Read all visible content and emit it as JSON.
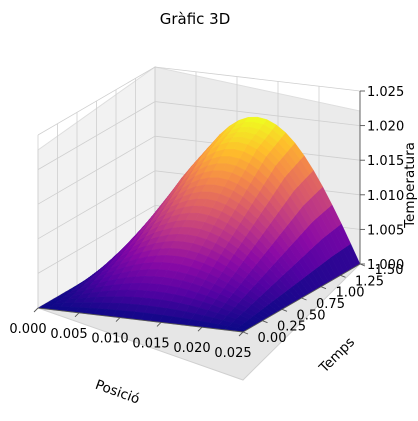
{
  "chart_data": {
    "type": "surface",
    "title": "Gràfic 3D",
    "xlabel": "Posició",
    "ylabel": "Temps",
    "zlabel": "Temperatura",
    "colormap": "plasma",
    "grid": true,
    "xlim": [
      0.0,
      0.025
    ],
    "ylim": [
      0.0,
      1.5
    ],
    "zlim": [
      1.0,
      1.025
    ],
    "x_ticks": [
      "0.000",
      "0.005",
      "0.010",
      "0.015",
      "0.020",
      "0.025"
    ],
    "y_ticks": [
      "0.00",
      "0.25",
      "0.50",
      "0.75",
      "1.00",
      "1.25",
      "1.50"
    ],
    "z_ticks": [
      "1.000",
      "1.005",
      "1.010",
      "1.015",
      "1.020",
      "1.025"
    ],
    "surface": {
      "description_of_values": "T(x,t) = 1 + A(t)*sin(pi*x/0.025), A rising with t",
      "x": [
        0.0,
        0.0025,
        0.005,
        0.0075,
        0.01,
        0.0125,
        0.015,
        0.0175,
        0.02,
        0.0225,
        0.025
      ],
      "t": [
        0.0,
        0.25,
        0.5,
        0.75,
        1.0,
        1.25,
        1.5
      ],
      "peak_amplitude_by_t": [
        0.0,
        0.0035,
        0.007,
        0.0105,
        0.014,
        0.0175,
        0.0195
      ]
    }
  }
}
